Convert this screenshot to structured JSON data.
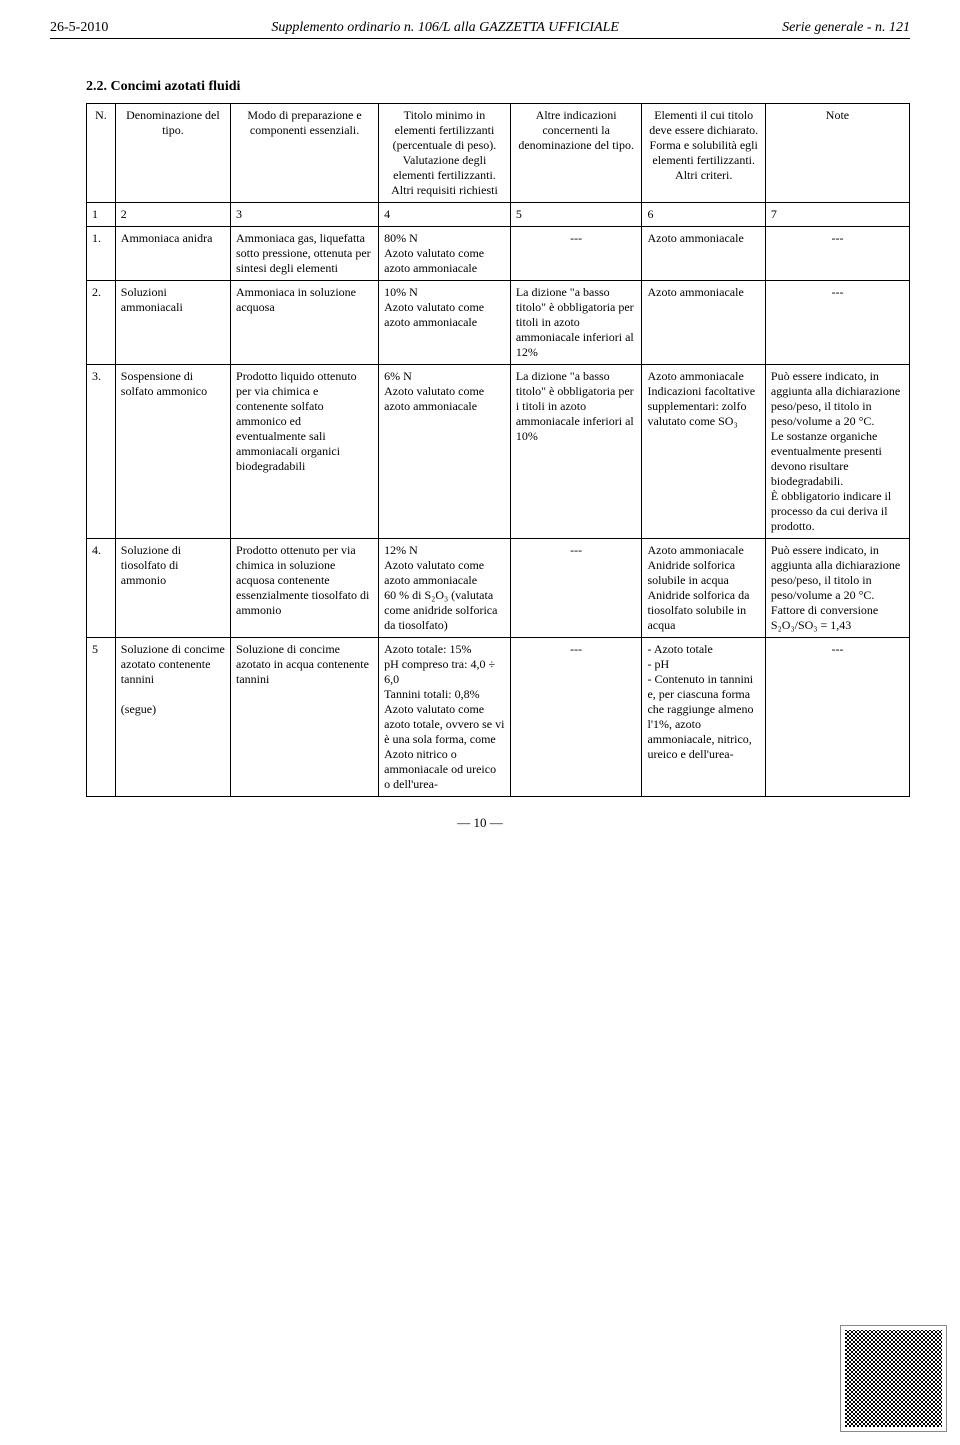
{
  "header": {
    "date": "26-5-2010",
    "center": "Supplemento ordinario n. 106/L alla GAZZETTA UFFICIALE",
    "right": "Serie generale - n. 121"
  },
  "section_title": "2.2. Concimi azotati fluidi",
  "columns": {
    "n": "N.",
    "den": "Denominazione del tipo.",
    "mod": "Modo di preparazione e componenti essenziali.",
    "tit": "Titolo minimo in elementi fertilizzanti (percentuale di peso). Valutazione degli elementi fertilizzanti. Altri requisiti richiesti",
    "alt": "Altre indicazioni concernenti la denominazione del tipo.",
    "ele": "Elementi il cui titolo deve essere dichiarato. Forma e solubilità egli elementi fertilizzanti. Altri criteri.",
    "note": "Note"
  },
  "colnums": {
    "c1": "1",
    "c2": "2",
    "c3": "3",
    "c4": "4",
    "c5": "5",
    "c6": "6",
    "c7": "7"
  },
  "rows": [
    {
      "n": "1.",
      "den": "Ammoniaca anidra",
      "mod": "Ammoniaca gas, liquefatta sotto pressione, ottenuta per sintesi degli elementi",
      "tit": "80% N\nAzoto valutato come azoto ammoniacale",
      "alt": "---",
      "ele": "Azoto ammoniacale",
      "note": "---"
    },
    {
      "n": "2.",
      "den": "Soluzioni ammoniacali",
      "mod": "Ammoniaca in soluzione acquosa",
      "tit": "10% N\nAzoto valutato come azoto ammoniacale",
      "alt": "La dizione \"a basso titolo\" è obbligatoria per titoli in azoto ammoniacale inferiori al 12%",
      "ele": "Azoto ammoniacale",
      "note": "---"
    },
    {
      "n": "3.",
      "den": "Sospensione di solfato ammonico",
      "mod": "Prodotto liquido ottenuto per via chimica e contenente solfato ammonico ed eventualmente sali ammoniacali organici biodegradabili",
      "tit": "6% N\nAzoto valutato come azoto ammoniacale",
      "alt": "La dizione \"a basso titolo\" è obbligatoria per i titoli in azoto ammoniacale inferiori al 10%",
      "ele": "Azoto ammoniacale\nIndicazioni facoltative supplementari: zolfo valutato come SO₃",
      "note": "Può essere indicato, in aggiunta alla dichiarazione peso/peso, il titolo in peso/volume a 20 °C.\nLe sostanze organiche eventualmente presenti devono risultare biodegradabili.\nÈ obbligatorio indicare il processo da cui deriva il prodotto."
    },
    {
      "n": "4.",
      "den": "Soluzione di tiosolfato di ammonio",
      "mod": "Prodotto ottenuto per via chimica in soluzione acquosa contenente essenzialmente tiosolfato di ammonio",
      "tit": "12% N\nAzoto valutato come azoto ammoniacale\n60 % di S₂O₃ (valutata come anidride solforica da tiosolfato)",
      "alt": "---",
      "ele": "Azoto ammoniacale\nAnidride solforica solubile in acqua\nAnidride solforica da tiosolfato solubile in acqua",
      "note": "Può essere indicato, in aggiunta alla dichiarazione peso/peso, il titolo in peso/volume a 20 °C.\nFattore di conversione S₂O₃/SO₃ = 1,43"
    },
    {
      "n": "5",
      "den": "Soluzione di concime azotato contenente tannini\n\n(segue)",
      "mod": "Soluzione di concime azotato in acqua contenente tannini",
      "tit": "Azoto totale: 15%\npH compreso tra: 4,0 ÷ 6,0\nTannini totali: 0,8%\nAzoto valutato come azoto totale, ovvero se vi è una sola forma, come Azoto nitrico o ammoniacale od ureico o dell'urea-",
      "alt": "---",
      "ele": "- Azoto totale\n- pH\n- Contenuto in tannini e, per ciascuna forma che raggiunge almeno l'1%, azoto ammoniacale, nitrico, ureico e dell'urea-",
      "note": "---"
    }
  ],
  "page_number": "— 10 —"
}
